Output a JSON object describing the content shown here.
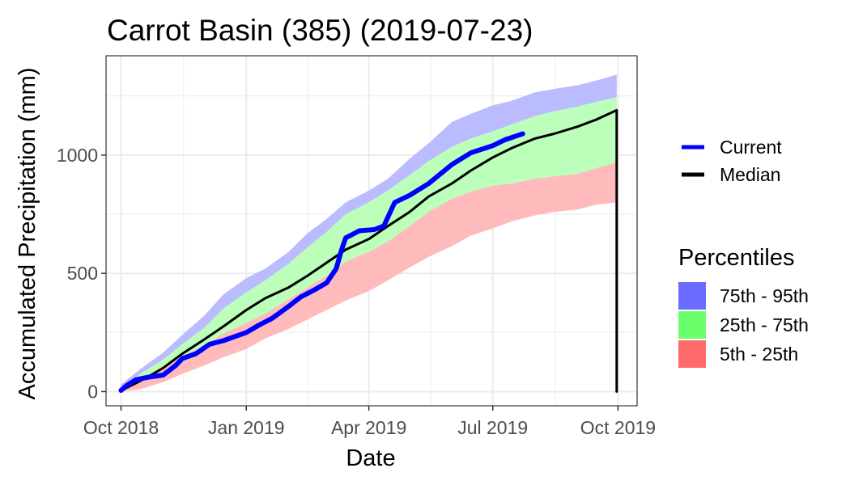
{
  "chart_data": {
    "type": "area",
    "title": "Carrot Basin (385) (2019-07-23)",
    "xlabel": "Date",
    "ylabel": "Accumulated Precipitation (mm)",
    "x_ticks": [
      {
        "date": "2018-10-01",
        "label": "Oct 2018"
      },
      {
        "date": "2019-01-01",
        "label": "Jan 2019"
      },
      {
        "date": "2019-04-01",
        "label": "Apr 2019"
      },
      {
        "date": "2019-07-01",
        "label": "Jul 2019"
      },
      {
        "date": "2019-10-01",
        "label": "Oct 2019"
      }
    ],
    "xlim": [
      "2018-09-20",
      "2019-10-15"
    ],
    "ylim": [
      -60,
      1420
    ],
    "y_ticks": [
      0,
      500,
      1000
    ],
    "grid": true,
    "legend_position": "right",
    "legend": {
      "lines": [
        {
          "label": "Current",
          "color": "#0000ff"
        },
        {
          "label": "Median",
          "color": "#000000"
        }
      ],
      "percentiles_title": "Percentiles",
      "bands": [
        {
          "label": "75th - 95th",
          "color": "#6b6bff"
        },
        {
          "label": "25th - 75th",
          "color": "#6bff6b"
        },
        {
          "label": "5th - 25th",
          "color": "#ff6b6b"
        }
      ]
    },
    "band_colors": {
      "p75_p95": "#bbbbff",
      "p25_p75": "#bbffbb",
      "p5_p25": "#ffbbbb"
    },
    "bands_data": {
      "dates": [
        "2018-10-01",
        "2018-10-15",
        "2018-11-01",
        "2018-11-15",
        "2018-12-01",
        "2018-12-15",
        "2019-01-01",
        "2019-01-15",
        "2019-02-01",
        "2019-02-15",
        "2019-03-01",
        "2019-03-15",
        "2019-04-01",
        "2019-04-15",
        "2019-05-01",
        "2019-05-15",
        "2019-06-01",
        "2019-06-15",
        "2019-07-01",
        "2019-07-15",
        "2019-08-01",
        "2019-08-15",
        "2019-09-01",
        "2019-09-15",
        "2019-09-30"
      ],
      "p5": [
        0,
        10,
        40,
        75,
        110,
        145,
        180,
        225,
        265,
        305,
        345,
        385,
        425,
        470,
        525,
        570,
        615,
        660,
        690,
        720,
        745,
        760,
        770,
        790,
        800
      ],
      "p25": [
        5,
        40,
        95,
        150,
        195,
        245,
        290,
        330,
        390,
        440,
        490,
        550,
        590,
        635,
        700,
        760,
        815,
        845,
        870,
        880,
        900,
        910,
        920,
        945,
        970
      ],
      "p75": [
        15,
        75,
        135,
        200,
        270,
        350,
        420,
        470,
        540,
        610,
        675,
        750,
        800,
        850,
        915,
        975,
        1035,
        1070,
        1100,
        1130,
        1165,
        1185,
        1205,
        1225,
        1245
      ],
      "p95": [
        30,
        95,
        165,
        240,
        320,
        410,
        480,
        520,
        590,
        670,
        730,
        800,
        850,
        900,
        985,
        1050,
        1140,
        1175,
        1210,
        1230,
        1265,
        1280,
        1295,
        1315,
        1340
      ]
    },
    "series": [
      {
        "name": "Median",
        "color": "#000000",
        "dates": [
          "2018-10-01",
          "2018-10-10",
          "2018-10-20",
          "2018-11-01",
          "2018-11-15",
          "2018-12-01",
          "2018-12-15",
          "2019-01-01",
          "2019-01-15",
          "2019-02-01",
          "2019-02-15",
          "2019-03-01",
          "2019-03-15",
          "2019-04-01",
          "2019-04-15",
          "2019-05-01",
          "2019-05-15",
          "2019-06-01",
          "2019-06-15",
          "2019-07-01",
          "2019-07-15",
          "2019-08-01",
          "2019-08-15",
          "2019-09-01",
          "2019-09-15",
          "2019-09-30",
          "2019-09-30"
        ],
        "values": [
          5,
          30,
          60,
          100,
          160,
          220,
          275,
          345,
          395,
          440,
          490,
          545,
          600,
          645,
          700,
          760,
          825,
          880,
          935,
          990,
          1030,
          1070,
          1090,
          1120,
          1150,
          1190,
          0
        ]
      },
      {
        "name": "Current",
        "color": "#0000ff",
        "dates": [
          "2018-10-01",
          "2018-10-05",
          "2018-10-12",
          "2018-10-20",
          "2018-11-01",
          "2018-11-10",
          "2018-11-15",
          "2018-11-25",
          "2018-12-05",
          "2018-12-15",
          "2019-01-01",
          "2019-01-10",
          "2019-01-20",
          "2019-02-01",
          "2019-02-10",
          "2019-02-20",
          "2019-03-01",
          "2019-03-08",
          "2019-03-12",
          "2019-03-15",
          "2019-03-25",
          "2019-04-05",
          "2019-04-12",
          "2019-04-20",
          "2019-05-01",
          "2019-05-15",
          "2019-06-01",
          "2019-06-15",
          "2019-07-01",
          "2019-07-10",
          "2019-07-23"
        ],
        "values": [
          5,
          25,
          50,
          60,
          70,
          110,
          140,
          160,
          200,
          215,
          250,
          280,
          310,
          360,
          400,
          430,
          460,
          520,
          600,
          650,
          680,
          685,
          700,
          800,
          830,
          880,
          960,
          1010,
          1040,
          1065,
          1090
        ]
      }
    ]
  }
}
